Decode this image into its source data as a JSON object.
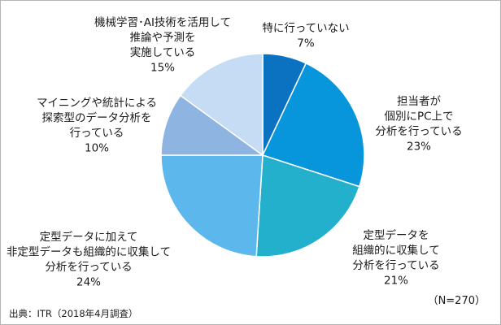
{
  "chart_data": {
    "type": "pie",
    "start_angle_deg": 0,
    "direction": "clockwise",
    "slices": [
      {
        "label_lines": [
          "特に行っていない"
        ],
        "value": 7,
        "value_label": "7%",
        "color": "#0a72c1"
      },
      {
        "label_lines": [
          "担当者が",
          "個別にPC上で",
          "分析を行っている"
        ],
        "value": 23,
        "value_label": "23%",
        "color": "#0795dc"
      },
      {
        "label_lines": [
          "定型データを",
          "組織的に収集して",
          "分析を行っている"
        ],
        "value": 21,
        "value_label": "21%",
        "color": "#22b0cd"
      },
      {
        "label_lines": [
          "定型データに加えて",
          "非定型データも組織的に収集して",
          "分析を行っている"
        ],
        "value": 24,
        "value_label": "24%",
        "color": "#5cb8ec"
      },
      {
        "label_lines": [
          "マイニングや統計による",
          "探索型のデータ分析を",
          "行っている"
        ],
        "value": 10,
        "value_label": "10%",
        "color": "#8eb4e1"
      },
      {
        "label_lines": [
          "機械学習･AI技術を活用して",
          "推論や予測を",
          "実施している"
        ],
        "value": 15,
        "value_label": "15%",
        "color": "#c5dcf4"
      }
    ]
  },
  "notes": {
    "sample_size": "（N=270）",
    "source": "出典：ITR（2018年4月調査）"
  }
}
